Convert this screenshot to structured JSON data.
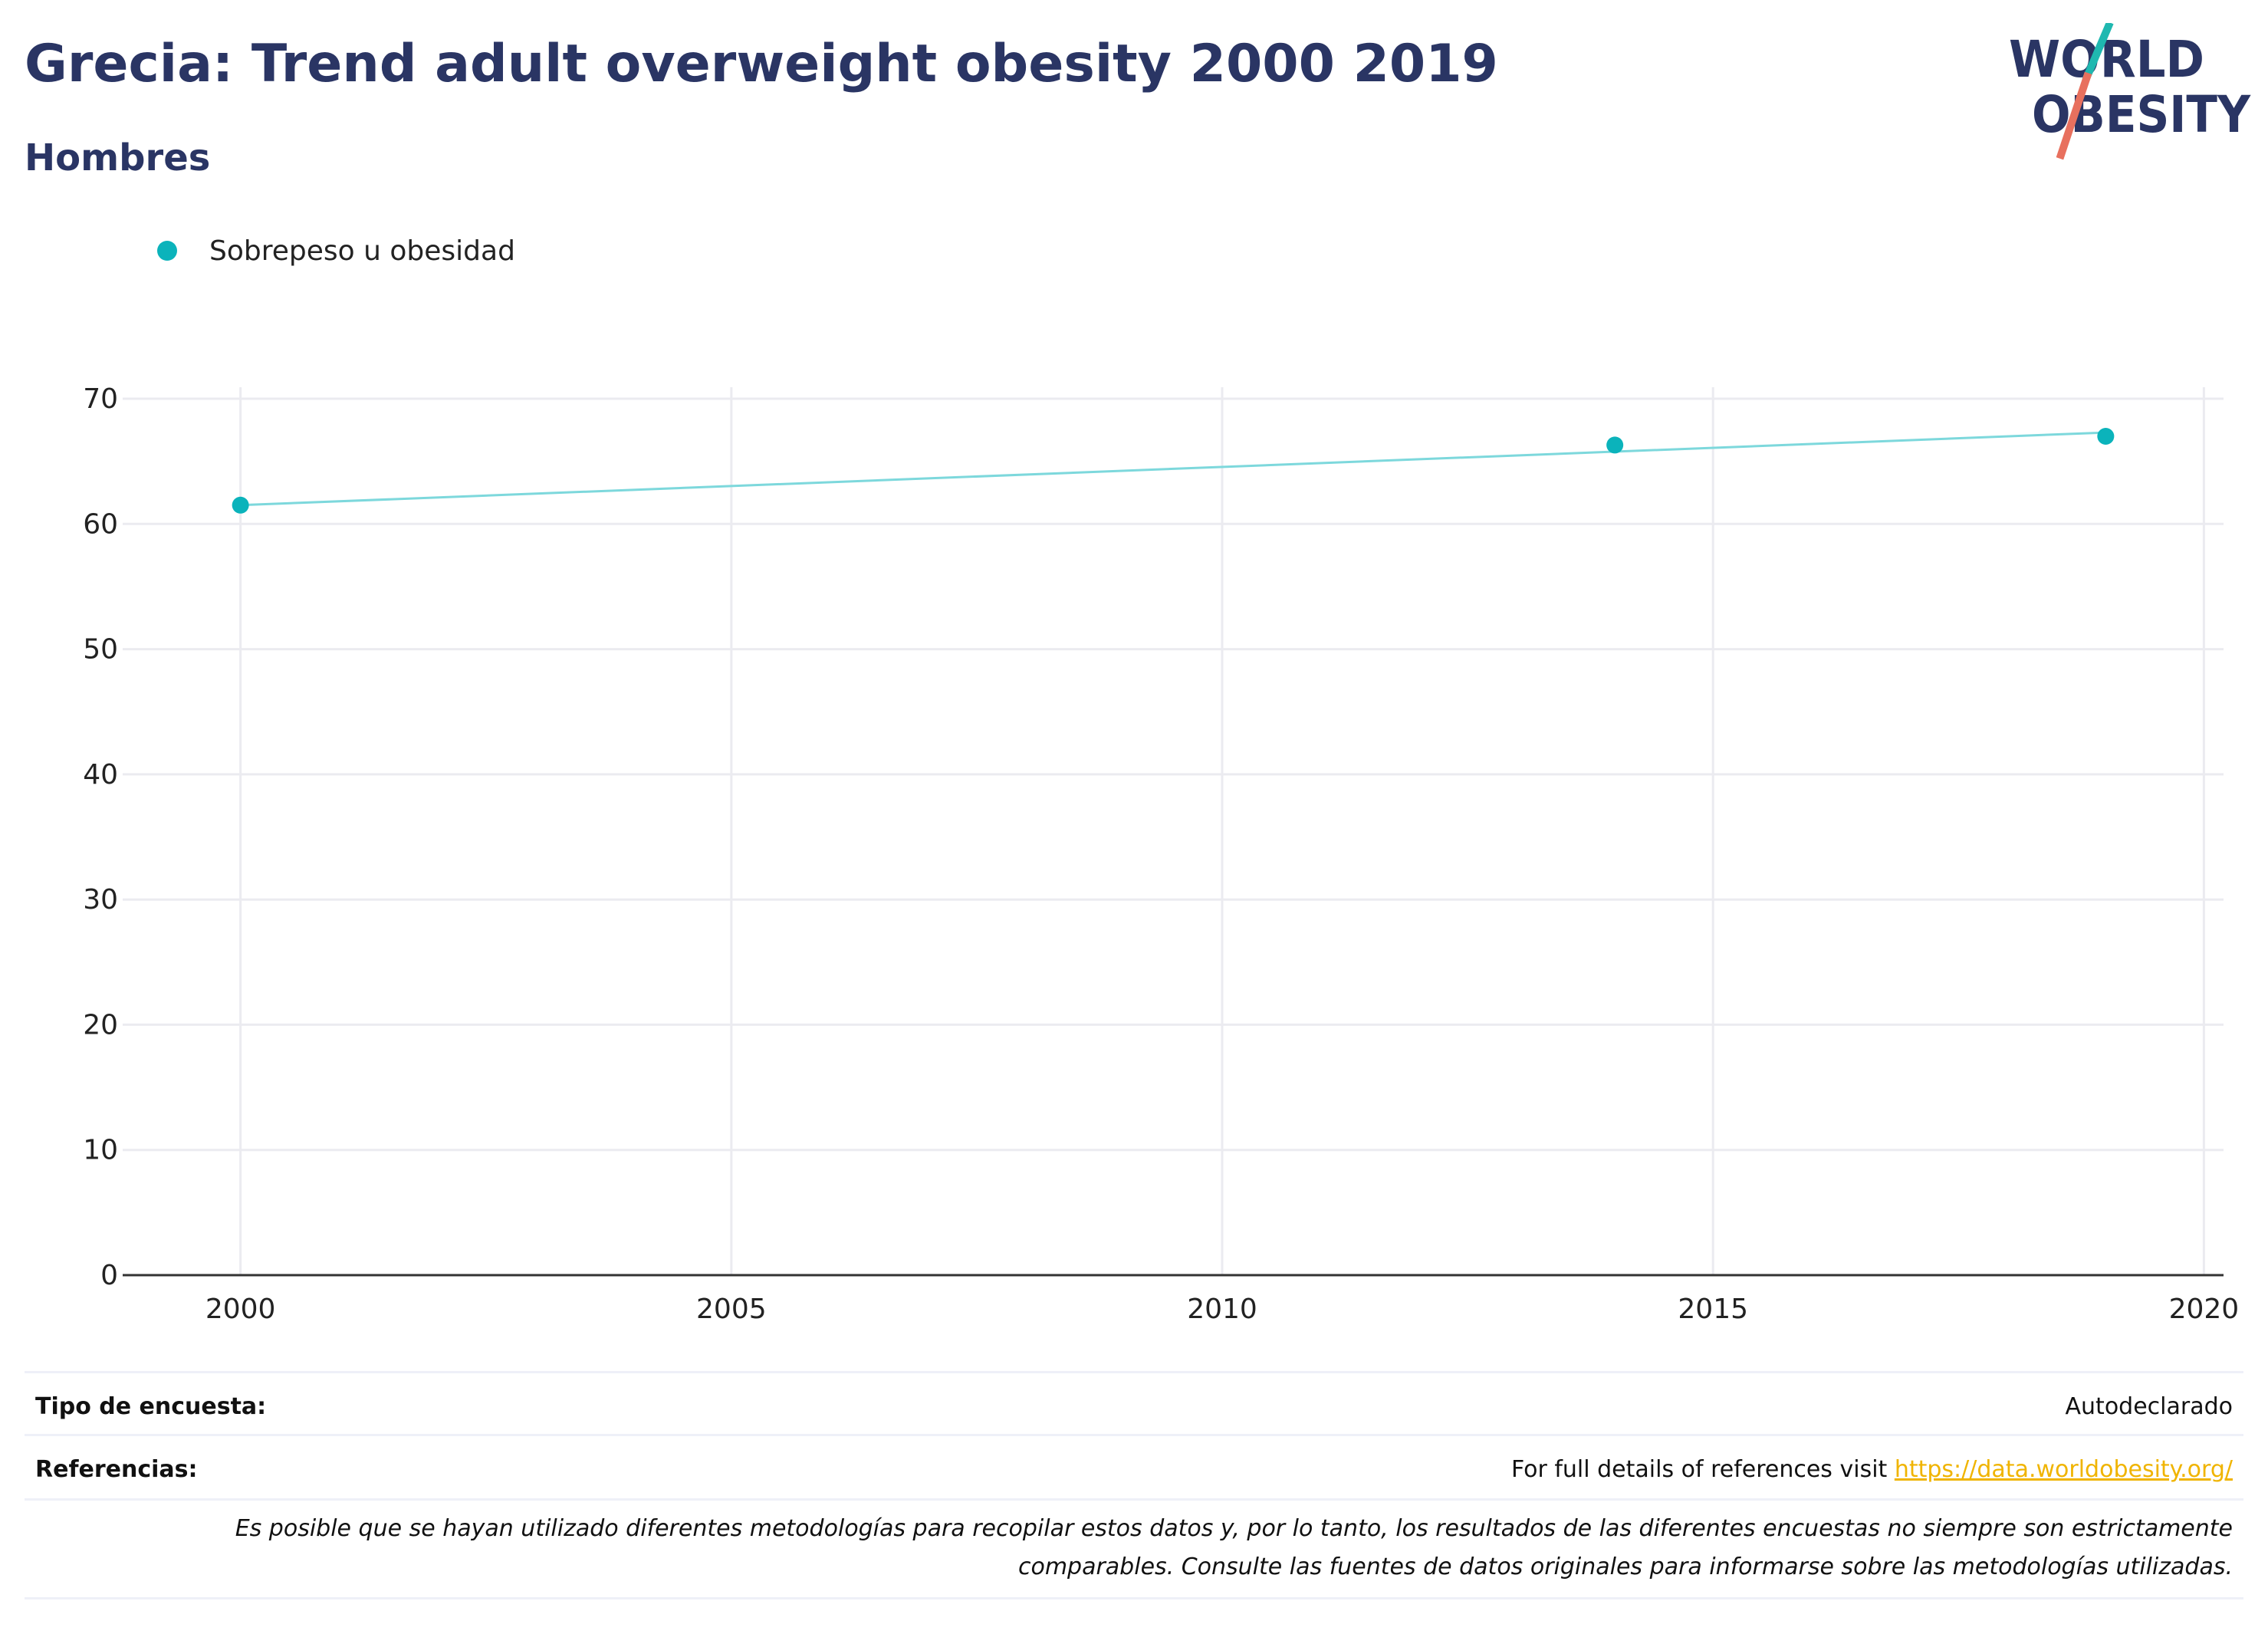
{
  "header": {
    "title": "Grecia: Trend adult overweight obesity 2000 2019",
    "subtitle": "Hombres"
  },
  "logo": {
    "line1": "WORLD",
    "line2": "OBESITY"
  },
  "colors": {
    "title": "#2a3564",
    "series_marker": "#0bb3bb",
    "series_line": "#7dd8dc",
    "logo_teal": "#1fb8b0",
    "logo_coral": "#e8705e",
    "link": "#f0b400"
  },
  "chart_data": {
    "type": "line",
    "series": [
      {
        "name": "Sobrepeso u obesidad",
        "points": [
          {
            "x": 2000,
            "y": 61.5
          },
          {
            "x": 2014,
            "y": 66.3
          },
          {
            "x": 2019,
            "y": 67.0
          }
        ],
        "trend": [
          {
            "x": 2000,
            "y": 61.5
          },
          {
            "x": 2019,
            "y": 67.3
          }
        ]
      }
    ],
    "xlim": [
      1998.8,
      2020.2
    ],
    "ylim": [
      0,
      70
    ],
    "xticks": [
      2000,
      2005,
      2010,
      2015,
      2020
    ],
    "yticks": [
      0,
      10,
      20,
      30,
      40,
      50,
      60,
      70
    ],
    "grid": true,
    "legend_position": "top-left"
  },
  "footer": {
    "survey_type_label": "Tipo de encuesta:",
    "survey_type_value": "Autodeclarado",
    "references_label": "Referencias:",
    "references_text": "For full details of references visit ",
    "references_link": "https://data.worldobesity.org/",
    "note_line1": "Es posible que se hayan utilizado diferentes metodologías para recopilar estos datos y, por lo tanto, los resultados de las diferentes encuestas no siempre son estrictamente",
    "note_line2": "comparables. Consulte las fuentes de datos originales para informarse sobre las metodologías utilizadas."
  }
}
